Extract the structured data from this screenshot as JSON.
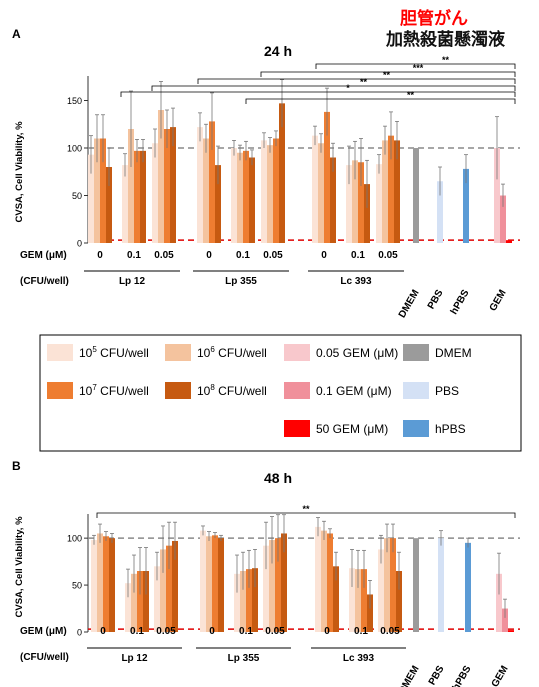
{
  "header": {
    "title_red": "胆管がん",
    "title_black": "加熱殺菌懸濁液"
  },
  "panels": [
    {
      "label": "A",
      "title": "24 h",
      "ylabel": "CVSA, Cell Viability, %",
      "gem_row_label": "GEM (μM)",
      "cfu_row_label": "(CFU/well)",
      "brackets": [
        {
          "text": "**"
        },
        {
          "text": "***"
        },
        {
          "text": "**"
        },
        {
          "text": "**"
        },
        {
          "text": "*"
        },
        {
          "text": "**"
        }
      ]
    },
    {
      "label": "B",
      "title": "48 h",
      "ylabel": "CVSA, Cell Viability, %",
      "gem_row_label": "GEM (μM)",
      "cfu_row_label": "(CFU/well)",
      "brackets": [
        {
          "text": "**"
        }
      ]
    }
  ],
  "legend": {
    "items": [
      {
        "base": "10",
        "exp": "5",
        "rest": " CFU/well",
        "color": "#fbe3d6"
      },
      {
        "base": "10",
        "exp": "6",
        "rest": " CFU/well",
        "color": "#f4c39e"
      },
      {
        "base": "",
        "exp": "",
        "rest": "0.05 GEM (μM)",
        "color": "#f8c8cc"
      },
      {
        "base": "",
        "exp": "",
        "rest": "DMEM",
        "color": "#9b9b9b"
      },
      {
        "base": "10",
        "exp": "7",
        "rest": " CFU/well",
        "color": "#ee7d31"
      },
      {
        "base": "10",
        "exp": "8",
        "rest": " CFU/well",
        "color": "#c65a11"
      },
      {
        "base": "",
        "exp": "",
        "rest": "0.1 GEM (μM)",
        "color": "#f0909b"
      },
      {
        "base": "",
        "exp": "",
        "rest": "PBS",
        "color": "#d4e1f5"
      },
      {
        "base": "",
        "exp": "",
        "rest": "50 GEM (μM)",
        "color": "#ff0000"
      },
      {
        "base": "",
        "exp": "",
        "rest": "hPBS",
        "color": "#5b9bd5"
      }
    ]
  },
  "colors": {
    "cfu5": "#fbe3d6",
    "cfu6": "#f4c39e",
    "cfu7": "#ee7d31",
    "cfu8": "#c65a11",
    "gem005": "#f8c8cc",
    "gem01": "#f0909b",
    "gem50": "#ff0000",
    "dmem": "#9b9b9b",
    "pbs": "#d4e1f5",
    "hpbs": "#5b9bd5"
  },
  "chart_data": [
    {
      "type": "bar",
      "title": "24 h",
      "ylabel": "CVSA, Cell Viability, %",
      "yticks": [
        0,
        50,
        100,
        150
      ],
      "ylim": [
        0,
        180
      ],
      "reference_lines": [
        100,
        3
      ],
      "groups": [
        {
          "name": "Lp 12",
          "subgroups": [
            {
              "gem": "0",
              "values": [
                93,
                110,
                110,
                80
              ],
              "errors": [
                20,
                25,
                25,
                20
              ]
            },
            {
              "gem": "0.1",
              "values": [
                82,
                120,
                97,
                97
              ],
              "errors": [
                12,
                40,
                12,
                12
              ]
            },
            {
              "gem": "0.05",
              "values": [
                105,
                140,
                120,
                122
              ],
              "errors": [
                15,
                30,
                20,
                20
              ]
            }
          ]
        },
        {
          "name": "Lp 355",
          "subgroups": [
            {
              "gem": "0",
              "values": [
                122,
                110,
                128,
                82
              ],
              "errors": [
                15,
                15,
                30,
                20
              ]
            },
            {
              "gem": "0.1",
              "values": [
                100,
                95,
                97,
                90
              ],
              "errors": [
                8,
                8,
                10,
                8
              ]
            },
            {
              "gem": "0.05",
              "values": [
                108,
                103,
                110,
                147
              ],
              "errors": [
                8,
                8,
                8,
                25
              ]
            }
          ]
        },
        {
          "name": "Lc 393",
          "subgroups": [
            {
              "gem": "0",
              "values": [
                113,
                105,
                138,
                90
              ],
              "errors": [
                10,
                10,
                25,
                15
              ]
            },
            {
              "gem": "0.1",
              "values": [
                82,
                87,
                85,
                62
              ],
              "errors": [
                20,
                20,
                25,
                25
              ]
            },
            {
              "gem": "0.05",
              "values": [
                83,
                108,
                113,
                108
              ],
              "errors": [
                10,
                15,
                25,
                20
              ]
            }
          ]
        }
      ],
      "controls": [
        {
          "name": "DMEM",
          "values": [
            100
          ],
          "errors": [
            0
          ]
        },
        {
          "name": "PBS",
          "values": [
            65
          ],
          "errors": [
            15
          ]
        },
        {
          "name": "hPBS",
          "values": [
            78
          ],
          "errors": [
            15
          ]
        },
        {
          "name": "GEM",
          "values": [
            100,
            50,
            3
          ],
          "errors": [
            33,
            12,
            0
          ]
        }
      ]
    },
    {
      "type": "bar",
      "title": "48 h",
      "ylabel": "CVSA, Cell Viability, %",
      "yticks": [
        0,
        50,
        100
      ],
      "ylim": [
        0,
        130
      ],
      "reference_lines": [
        100,
        3
      ],
      "groups": [
        {
          "name": "Lp 12",
          "subgroups": [
            {
              "gem": "0",
              "values": [
                98,
                105,
                102,
                100
              ],
              "errors": [
                5,
                10,
                5,
                5
              ]
            },
            {
              "gem": "0.1",
              "values": [
                52,
                62,
                65,
                65
              ],
              "errors": [
                15,
                20,
                25,
                25
              ]
            },
            {
              "gem": "0.05",
              "values": [
                70,
                88,
                92,
                97
              ],
              "errors": [
                15,
                25,
                25,
                20
              ]
            }
          ]
        },
        {
          "name": "Lp 355",
          "subgroups": [
            {
              "gem": "0",
              "values": [
                108,
                102,
                103,
                100
              ],
              "errors": [
                5,
                5,
                3,
                3
              ]
            },
            {
              "gem": "0.1",
              "values": [
                62,
                65,
                67,
                68
              ],
              "errors": [
                20,
                20,
                20,
                20
              ]
            },
            {
              "gem": "0.05",
              "values": [
                92,
                98,
                100,
                105
              ],
              "errors": [
                25,
                25,
                25,
                20
              ]
            }
          ]
        },
        {
          "name": "Lc 393",
          "subgroups": [
            {
              "gem": "0",
              "values": [
                112,
                108,
                105,
                70
              ],
              "errors": [
                10,
                10,
                5,
                15
              ]
            },
            {
              "gem": "0.1",
              "values": [
                68,
                67,
                67,
                40
              ],
              "errors": [
                20,
                20,
                20,
                15
              ]
            },
            {
              "gem": "0.05",
              "values": [
                88,
                100,
                100,
                65
              ],
              "errors": [
                15,
                15,
                15,
                20
              ]
            }
          ]
        }
      ],
      "controls": [
        {
          "name": "DMEM",
          "values": [
            100
          ],
          "errors": [
            0
          ]
        },
        {
          "name": "PBS",
          "values": [
            100
          ],
          "errors": [
            8
          ]
        },
        {
          "name": "hPBS",
          "values": [
            95
          ],
          "errors": [
            5
          ]
        },
        {
          "name": "GEM",
          "values": [
            62,
            25,
            2
          ],
          "errors": [
            22,
            10,
            0
          ]
        }
      ]
    }
  ]
}
